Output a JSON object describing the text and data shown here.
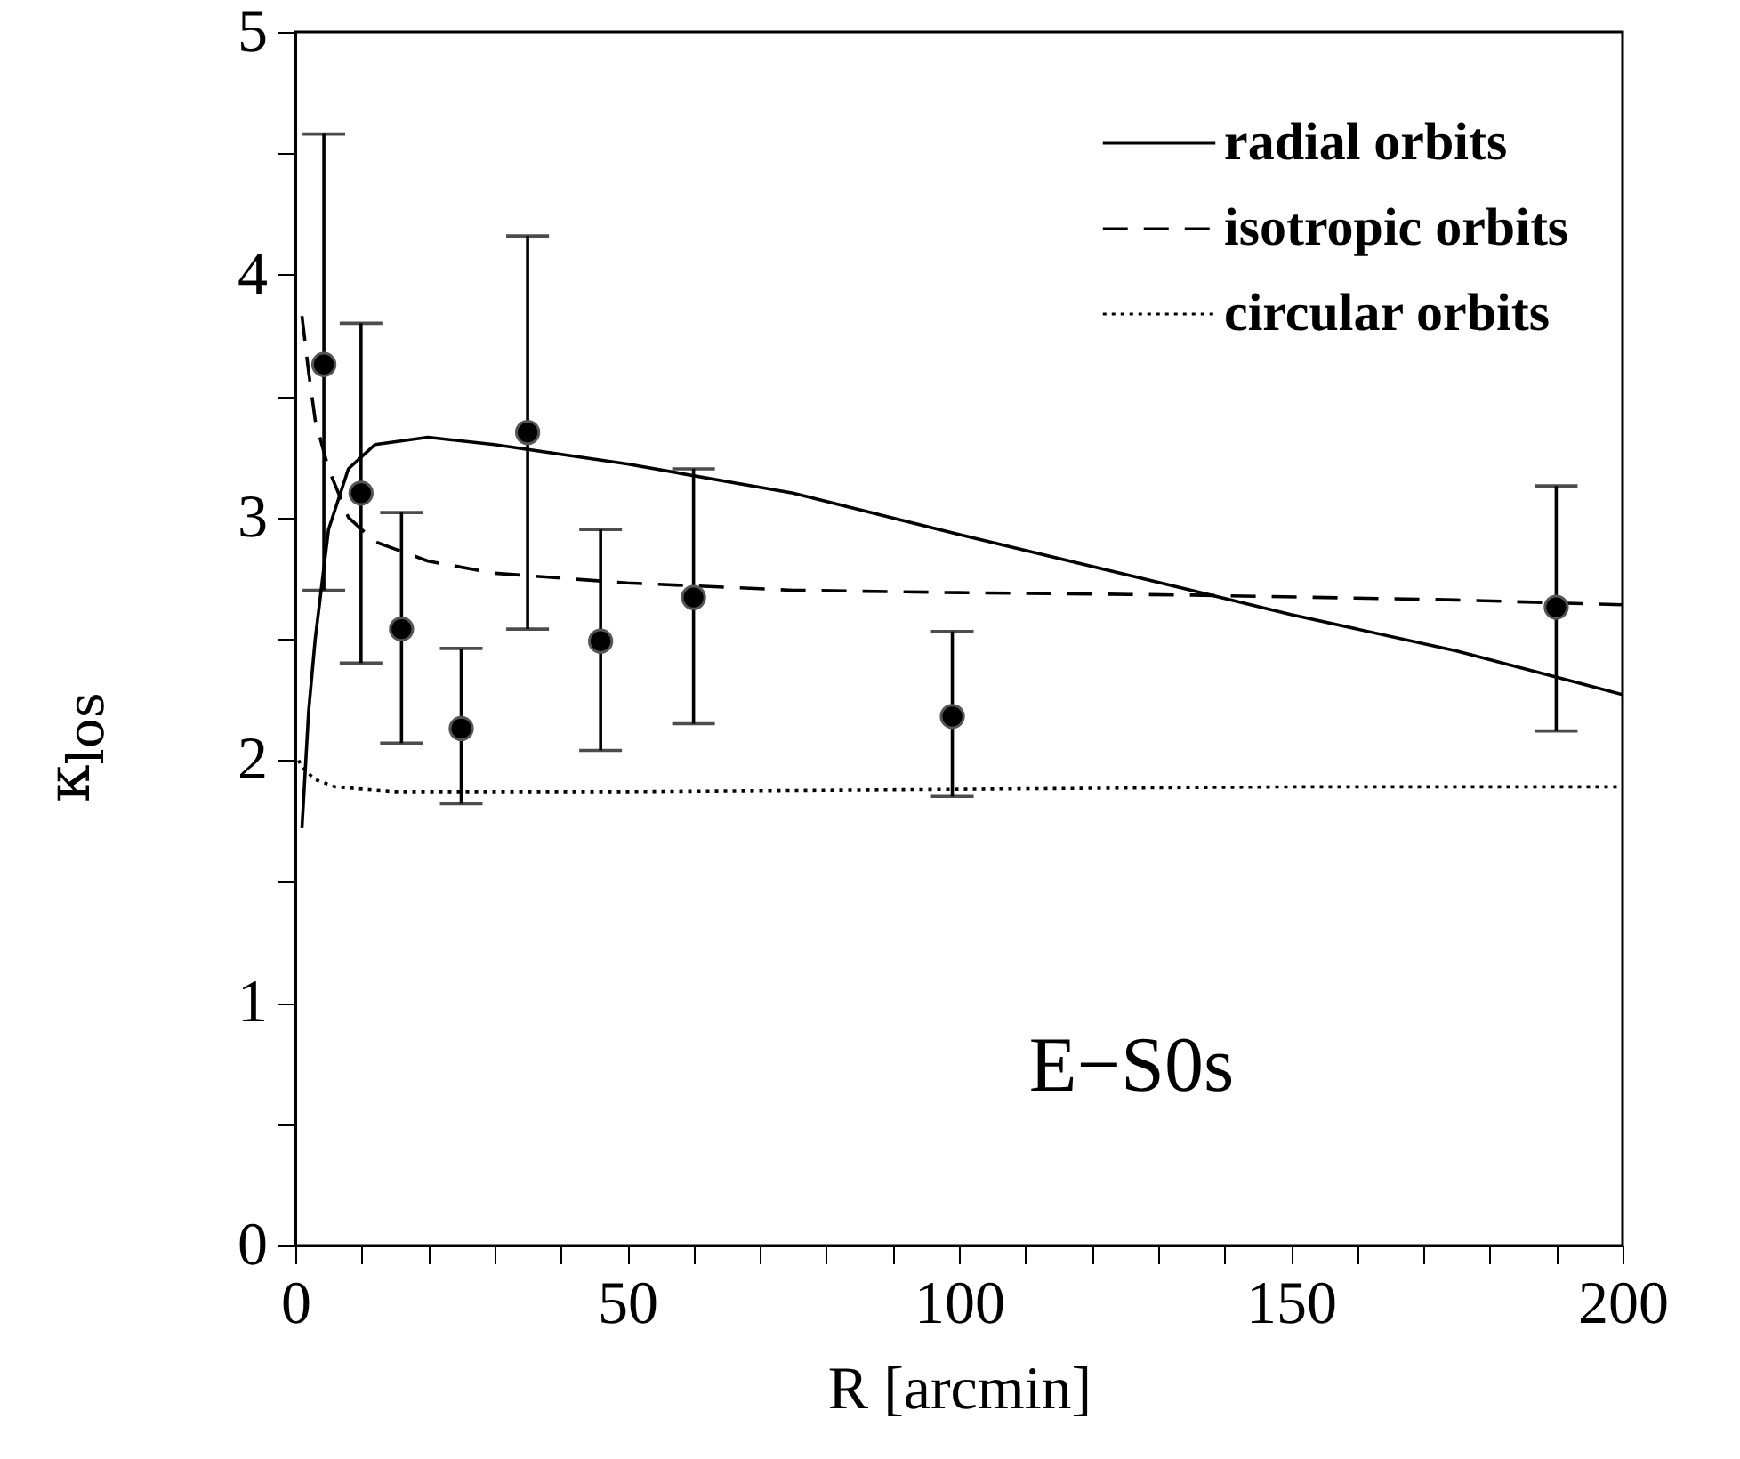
{
  "chart_data": {
    "type": "line",
    "xlabel": "R [arcmin]",
    "ylabel": "κ$_{los}$",
    "annotations": [
      "E−S0s"
    ],
    "xlim": [
      0,
      200
    ],
    "ylim": [
      0,
      5
    ],
    "xticks": [
      0,
      {
        "value": 10,
        "label": null
      },
      {
        "value": 20,
        "label": null
      },
      {
        "value": 30,
        "label": null
      },
      {
        "value": 40,
        "label": null
      },
      50,
      {
        "value": 60,
        "label": null
      },
      {
        "value": 70,
        "label": null
      },
      {
        "value": 80,
        "label": null
      },
      {
        "value": 90,
        "label": null
      },
      100,
      {
        "value": 110,
        "label": null
      },
      {
        "value": 120,
        "label": null
      },
      {
        "value": 130,
        "label": null
      },
      {
        "value": 140,
        "label": null
      },
      150,
      {
        "value": 160,
        "label": null
      },
      {
        "value": 170,
        "label": null
      },
      {
        "value": 180,
        "label": null
      },
      {
        "value": 190,
        "label": null
      },
      200
    ],
    "yticks": [
      0,
      {
        "value": 0.5,
        "label": null
      },
      1,
      {
        "value": 1.5,
        "label": null
      },
      2,
      {
        "value": 2.5,
        "label": null
      },
      3,
      {
        "value": 3.5,
        "label": null
      },
      4,
      {
        "value": 4.5,
        "label": null
      },
      5
    ],
    "legend": "top right",
    "grid": false,
    "series": [
      {
        "name": "radial orbits",
        "type": "line",
        "line_style": "solid",
        "color": "#000000",
        "x": [
          1,
          2,
          3,
          5,
          8,
          12,
          20,
          30,
          50,
          75,
          100,
          135,
          150,
          175,
          200
        ],
        "values": [
          1.72,
          2.2,
          2.5,
          2.95,
          3.2,
          3.3,
          3.33,
          3.3,
          3.22,
          3.1,
          2.93,
          2.7,
          2.6,
          2.45,
          2.27
        ]
      },
      {
        "name": "isotropic orbits",
        "type": "line",
        "line_style": "dashed",
        "color": "#000000",
        "x": [
          1,
          2,
          3,
          5,
          8,
          12,
          20,
          30,
          50,
          75,
          100,
          135,
          175,
          200
        ],
        "values": [
          3.83,
          3.6,
          3.4,
          3.2,
          3.0,
          2.9,
          2.82,
          2.77,
          2.73,
          2.7,
          2.69,
          2.68,
          2.66,
          2.64
        ]
      },
      {
        "name": "circular orbits",
        "type": "line",
        "line_style": "dotted",
        "color": "#000000",
        "x": [
          0.5,
          1,
          3,
          6,
          15,
          50,
          100,
          150,
          200
        ],
        "values": [
          2.0,
          1.97,
          1.92,
          1.89,
          1.87,
          1.87,
          1.88,
          1.89,
          1.89
        ]
      },
      {
        "type": "scatter",
        "marker": "circle",
        "color": "#000000",
        "x": [
          4.3,
          9.9,
          16,
          25,
          35,
          46,
          60,
          99,
          190
        ],
        "values": [
          3.63,
          3.1,
          2.54,
          2.13,
          3.35,
          2.49,
          2.67,
          2.18,
          2.63
        ],
        "errors": [
          [
            2.7,
            4.58
          ],
          [
            2.4,
            3.8
          ],
          [
            2.07,
            3.02
          ],
          [
            1.82,
            2.46
          ],
          [
            2.54,
            4.16
          ],
          [
            2.04,
            2.95
          ],
          [
            2.15,
            3.2
          ],
          [
            1.85,
            2.53
          ],
          [
            2.12,
            3.13
          ]
        ]
      }
    ]
  }
}
